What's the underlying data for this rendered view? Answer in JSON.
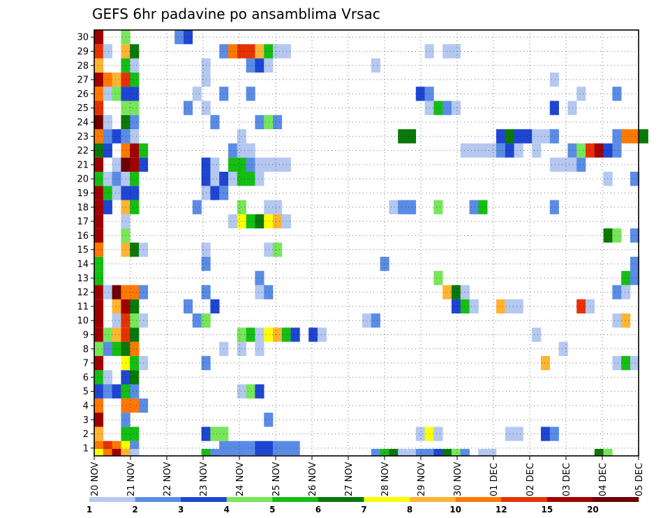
{
  "chart_data": {
    "type": "heatmap",
    "title": "GEFS 6hr padavine po ansamblima Vrsac",
    "x_labels": [
      "20 NOV",
      "21 NOV",
      "22 NOV",
      "23 NOV",
      "24 NOV",
      "25 NOV",
      "26 NOV",
      "27 NOV",
      "28 NOV",
      "29 NOV",
      "30 NOV",
      "01 DEC",
      "02 DEC",
      "03 DEC",
      "04 DEC",
      "05 DEC"
    ],
    "y_labels": [
      "1",
      "2",
      "3",
      "4",
      "5",
      "6",
      "7",
      "8",
      "9",
      "10",
      "11",
      "12",
      "13",
      "14",
      "15",
      "16",
      "17",
      "18",
      "19",
      "20",
      "21",
      "22",
      "23",
      "24",
      "25",
      "26",
      "27",
      "28",
      "29",
      "30"
    ],
    "grid": true,
    "x_step_hours": 6,
    "colorbar": {
      "labels": [
        "1",
        "2",
        "3",
        "4",
        "5",
        "6",
        "7",
        "8",
        "10",
        "12",
        "15",
        "20"
      ],
      "colors": [
        "#b4c8f0",
        "#5a8ce6",
        "#1e46d2",
        "#78e65a",
        "#14be14",
        "#0a780a",
        "#ffff00",
        "#ffb432",
        "#ff7800",
        "#e63200",
        "#a00000",
        "#6e0000"
      ]
    },
    "rows": {
      "1": [
        [
          0,
          9
        ],
        [
          1,
          10
        ],
        [
          2,
          9
        ],
        [
          3,
          7
        ],
        [
          4,
          2
        ],
        [
          14,
          2
        ],
        [
          15,
          2
        ],
        [
          16,
          2
        ],
        [
          17,
          2
        ],
        [
          18,
          3
        ],
        [
          19,
          3
        ],
        [
          20,
          2
        ],
        [
          21,
          2
        ],
        [
          22,
          2
        ]
      ],
      "2": [
        [
          0,
          8
        ],
        [
          3,
          5
        ],
        [
          4,
          5
        ],
        [
          12,
          3
        ],
        [
          13,
          4
        ],
        [
          14,
          4
        ],
        [
          36,
          1
        ],
        [
          37,
          7
        ],
        [
          38,
          1
        ],
        [
          46,
          1
        ],
        [
          47,
          1
        ],
        [
          50,
          3
        ],
        [
          51,
          2
        ]
      ],
      "3": [
        [
          0,
          11
        ],
        [
          3,
          2
        ],
        [
          19,
          2
        ]
      ],
      "4": [
        [
          0,
          9
        ],
        [
          3,
          9
        ],
        [
          4,
          9
        ],
        [
          5,
          2
        ]
      ],
      "5": [
        [
          0,
          3
        ],
        [
          1,
          2
        ],
        [
          2,
          3
        ],
        [
          3,
          5
        ],
        [
          4,
          2
        ],
        [
          16,
          1
        ],
        [
          17,
          4
        ],
        [
          18,
          3
        ]
      ],
      "6": [
        [
          0,
          5
        ],
        [
          1,
          1
        ],
        [
          3,
          3
        ],
        [
          4,
          6
        ]
      ],
      "7": [
        [
          0,
          11
        ],
        [
          3,
          7
        ],
        [
          4,
          5
        ],
        [
          5,
          1
        ],
        [
          12,
          2
        ],
        [
          50,
          8
        ],
        [
          58,
          1
        ],
        [
          59,
          5
        ],
        [
          60,
          1
        ]
      ],
      "8": [
        [
          0,
          4
        ],
        [
          1,
          2
        ],
        [
          2,
          5
        ],
        [
          3,
          6
        ],
        [
          4,
          9
        ],
        [
          14,
          1
        ],
        [
          16,
          1
        ],
        [
          18,
          1
        ],
        [
          52,
          1
        ]
      ],
      "9": [
        [
          0,
          11
        ],
        [
          1,
          4
        ],
        [
          2,
          8
        ],
        [
          3,
          10
        ],
        [
          4,
          6
        ],
        [
          16,
          4
        ],
        [
          17,
          5
        ],
        [
          18,
          1
        ],
        [
          19,
          7
        ],
        [
          20,
          8
        ],
        [
          21,
          5
        ],
        [
          22,
          3
        ],
        [
          24,
          3
        ],
        [
          25,
          1
        ],
        [
          49,
          1
        ]
      ],
      "10": [
        [
          0,
          11
        ],
        [
          2,
          1
        ],
        [
          3,
          10
        ],
        [
          4,
          4
        ],
        [
          5,
          1
        ],
        [
          11,
          2
        ],
        [
          12,
          4
        ],
        [
          30,
          1
        ],
        [
          31,
          2
        ],
        [
          58,
          1
        ],
        [
          59,
          8
        ]
      ],
      "11": [
        [
          0,
          11
        ],
        [
          2,
          8
        ],
        [
          3,
          11
        ],
        [
          4,
          6
        ],
        [
          10,
          2
        ],
        [
          13,
          3
        ],
        [
          40,
          3
        ],
        [
          41,
          5
        ],
        [
          42,
          1
        ],
        [
          45,
          8
        ],
        [
          46,
          1
        ],
        [
          47,
          1
        ],
        [
          54,
          10
        ],
        [
          55,
          1
        ]
      ],
      "12": [
        [
          0,
          11
        ],
        [
          1,
          1
        ],
        [
          2,
          12
        ],
        [
          3,
          9
        ],
        [
          4,
          9
        ],
        [
          5,
          2
        ],
        [
          12,
          2
        ],
        [
          18,
          1
        ],
        [
          19,
          2
        ],
        [
          39,
          8
        ],
        [
          40,
          6
        ],
        [
          41,
          1
        ],
        [
          58,
          2
        ],
        [
          59,
          1
        ]
      ],
      "13": [
        [
          0,
          5
        ],
        [
          18,
          2
        ],
        [
          38,
          4
        ],
        [
          59,
          5
        ],
        [
          60,
          2
        ]
      ],
      "14": [
        [
          0,
          5
        ],
        [
          12,
          2
        ],
        [
          32,
          2
        ],
        [
          60,
          2
        ]
      ],
      "15": [
        [
          0,
          9
        ],
        [
          3,
          8
        ],
        [
          4,
          6
        ],
        [
          5,
          1
        ],
        [
          12,
          1
        ],
        [
          19,
          1
        ],
        [
          20,
          4
        ]
      ],
      "16": [
        [
          0,
          11
        ],
        [
          3,
          4
        ],
        [
          57,
          6
        ],
        [
          58,
          4
        ],
        [
          60,
          2
        ]
      ],
      "17": [
        [
          0,
          11
        ],
        [
          3,
          1
        ],
        [
          15,
          1
        ],
        [
          16,
          7
        ],
        [
          17,
          5
        ],
        [
          18,
          6
        ],
        [
          19,
          7
        ],
        [
          20,
          8
        ],
        [
          21,
          1
        ]
      ],
      "18": [
        [
          0,
          11
        ],
        [
          1,
          3
        ],
        [
          3,
          8
        ],
        [
          4,
          5
        ],
        [
          11,
          2
        ],
        [
          16,
          4
        ],
        [
          19,
          1
        ],
        [
          20,
          1
        ],
        [
          33,
          1
        ],
        [
          34,
          2
        ],
        [
          35,
          2
        ],
        [
          38,
          4
        ],
        [
          42,
          2
        ],
        [
          43,
          5
        ],
        [
          51,
          2
        ]
      ],
      "19": [
        [
          0,
          11
        ],
        [
          1,
          5
        ],
        [
          2,
          1
        ],
        [
          3,
          3
        ],
        [
          4,
          3
        ],
        [
          12,
          1
        ],
        [
          13,
          3
        ],
        [
          14,
          2
        ]
      ],
      "20": [
        [
          0,
          5
        ],
        [
          1,
          1
        ],
        [
          2,
          2
        ],
        [
          3,
          1
        ],
        [
          4,
          5
        ],
        [
          12,
          3
        ],
        [
          13,
          1
        ],
        [
          14,
          3
        ],
        [
          15,
          1
        ],
        [
          16,
          5
        ],
        [
          17,
          5
        ],
        [
          18,
          1
        ],
        [
          57,
          1
        ],
        [
          60,
          2
        ]
      ],
      "21": [
        [
          0,
          11
        ],
        [
          2,
          1
        ],
        [
          3,
          12
        ],
        [
          4,
          11
        ],
        [
          5,
          3
        ],
        [
          12,
          3
        ],
        [
          13,
          1
        ],
        [
          15,
          5
        ],
        [
          16,
          5
        ],
        [
          17,
          2
        ],
        [
          18,
          1
        ],
        [
          19,
          1
        ],
        [
          20,
          1
        ],
        [
          21,
          1
        ],
        [
          51,
          1
        ],
        [
          52,
          1
        ],
        [
          53,
          1
        ],
        [
          54,
          2
        ]
      ],
      "22": [
        [
          0,
          6
        ],
        [
          1,
          3
        ],
        [
          3,
          9
        ],
        [
          4,
          11
        ],
        [
          5,
          5
        ],
        [
          15,
          2
        ],
        [
          16,
          1
        ],
        [
          17,
          1
        ],
        [
          41,
          1
        ],
        [
          42,
          1
        ],
        [
          43,
          1
        ],
        [
          44,
          1
        ],
        [
          45,
          2
        ],
        [
          46,
          3
        ],
        [
          47,
          1
        ],
        [
          49,
          1
        ],
        [
          53,
          2
        ],
        [
          54,
          4
        ],
        [
          55,
          10
        ],
        [
          56,
          11
        ],
        [
          57,
          3
        ],
        [
          58,
          2
        ]
      ],
      "23": [
        [
          0,
          9
        ],
        [
          1,
          2
        ],
        [
          2,
          3
        ],
        [
          3,
          2
        ],
        [
          4,
          1
        ],
        [
          16,
          1
        ],
        [
          34,
          6
        ],
        [
          35,
          6
        ],
        [
          45,
          3
        ],
        [
          46,
          6
        ],
        [
          47,
          3
        ],
        [
          48,
          3
        ],
        [
          49,
          1
        ],
        [
          50,
          1
        ],
        [
          51,
          2
        ],
        [
          58,
          2
        ],
        [
          59,
          9
        ],
        [
          60,
          9
        ],
        [
          61,
          6
        ]
      ],
      "24": [
        [
          0,
          12
        ],
        [
          1,
          1
        ],
        [
          3,
          6
        ],
        [
          4,
          2
        ],
        [
          13,
          2
        ],
        [
          18,
          2
        ],
        [
          19,
          4
        ],
        [
          20,
          2
        ]
      ],
      "25": [
        [
          0,
          10
        ],
        [
          3,
          4
        ],
        [
          4,
          4
        ],
        [
          10,
          2
        ],
        [
          12,
          1
        ],
        [
          37,
          1
        ],
        [
          38,
          5
        ],
        [
          39,
          2
        ],
        [
          40,
          1
        ],
        [
          51,
          3
        ],
        [
          53,
          1
        ]
      ],
      "26": [
        [
          0,
          9
        ],
        [
          1,
          1
        ],
        [
          2,
          4
        ],
        [
          3,
          3
        ],
        [
          4,
          3
        ],
        [
          11,
          1
        ],
        [
          14,
          2
        ],
        [
          17,
          2
        ],
        [
          36,
          3
        ],
        [
          37,
          2
        ],
        [
          54,
          1
        ],
        [
          58,
          2
        ]
      ],
      "27": [
        [
          0,
          11
        ],
        [
          1,
          9
        ],
        [
          2,
          8
        ],
        [
          3,
          10
        ],
        [
          4,
          5
        ],
        [
          12,
          1
        ],
        [
          51,
          1
        ]
      ],
      "28": [
        [
          0,
          8
        ],
        [
          3,
          5
        ],
        [
          4,
          1
        ],
        [
          12,
          1
        ],
        [
          17,
          2
        ],
        [
          18,
          3
        ],
        [
          19,
          1
        ],
        [
          31,
          1
        ]
      ],
      "29": [
        [
          0,
          10
        ],
        [
          1,
          1
        ],
        [
          3,
          8
        ],
        [
          4,
          6
        ],
        [
          14,
          2
        ],
        [
          15,
          9
        ],
        [
          16,
          10
        ],
        [
          17,
          10
        ],
        [
          18,
          8
        ],
        [
          19,
          5
        ],
        [
          20,
          1
        ],
        [
          21,
          1
        ],
        [
          37,
          1
        ],
        [
          39,
          1
        ],
        [
          40,
          1
        ]
      ],
      "30": [
        [
          0,
          11
        ],
        [
          3,
          4
        ],
        [
          9,
          2
        ],
        [
          10,
          3
        ]
      ],
      "bottom": [
        [
          0,
          7
        ],
        [
          1,
          9
        ],
        [
          2,
          11
        ],
        [
          3,
          8
        ],
        [
          4,
          1
        ],
        [
          12,
          5
        ],
        [
          13,
          2
        ],
        [
          31,
          2
        ],
        [
          32,
          5
        ],
        [
          33,
          6
        ],
        [
          34,
          1
        ],
        [
          35,
          1
        ],
        [
          36,
          2
        ],
        [
          37,
          2
        ],
        [
          38,
          3
        ],
        [
          39,
          6
        ],
        [
          40,
          4
        ],
        [
          41,
          2
        ],
        [
          43,
          1
        ],
        [
          44,
          1
        ],
        [
          56,
          6
        ],
        [
          57,
          4
        ]
      ]
    }
  }
}
